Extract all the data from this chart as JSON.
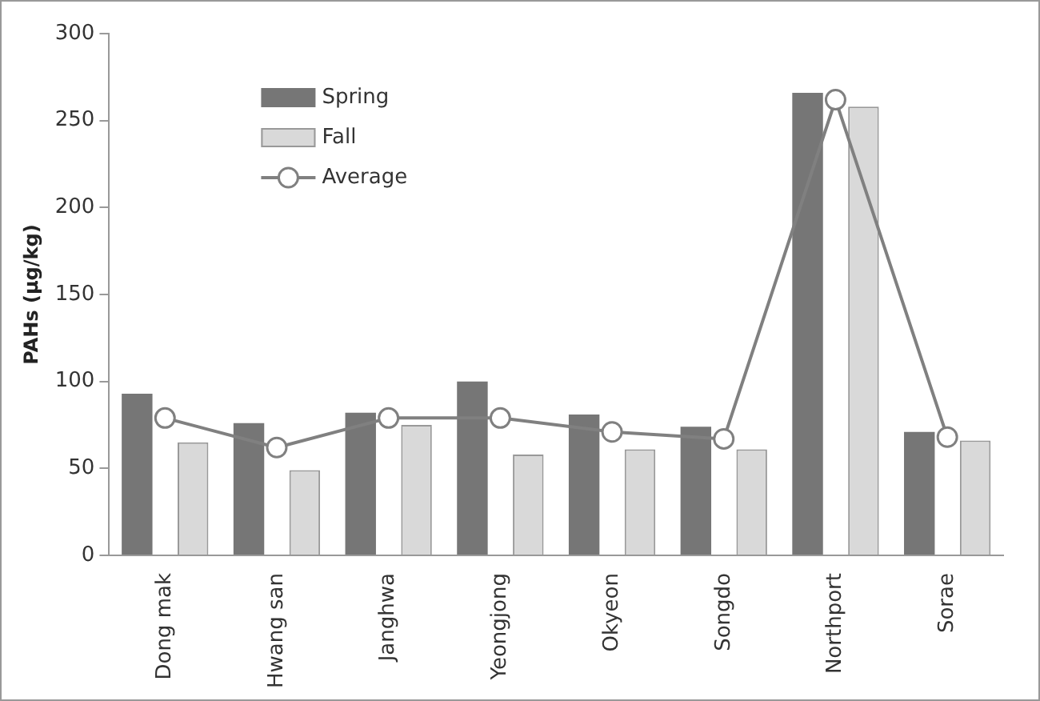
{
  "chart_data": {
    "type": "bar",
    "ylabel": "PAHs (μg/kg)",
    "categories": [
      "Dong mak",
      "Hwang san",
      "Janghwa",
      "Yeongjong",
      "Okyeon",
      "Songdo",
      "Northport",
      "Sorae"
    ],
    "series": [
      {
        "name": "Spring",
        "color": "#767676",
        "values": [
          93,
          76,
          82,
          100,
          81,
          74,
          266,
          71
        ]
      },
      {
        "name": "Fall",
        "color": "#d9d9d9",
        "values": [
          65,
          49,
          75,
          58,
          61,
          61,
          258,
          66
        ]
      },
      {
        "name": "Average",
        "type": "line",
        "color": "#808080",
        "values": [
          79,
          62,
          79,
          79,
          71,
          67,
          262,
          68
        ]
      }
    ],
    "ylim": [
      0,
      300
    ],
    "yticks": [
      0,
      50,
      100,
      150,
      200,
      250,
      300
    ],
    "grid": false,
    "legend": "top left",
    "marker": "circle",
    "line_style": "solid"
  }
}
